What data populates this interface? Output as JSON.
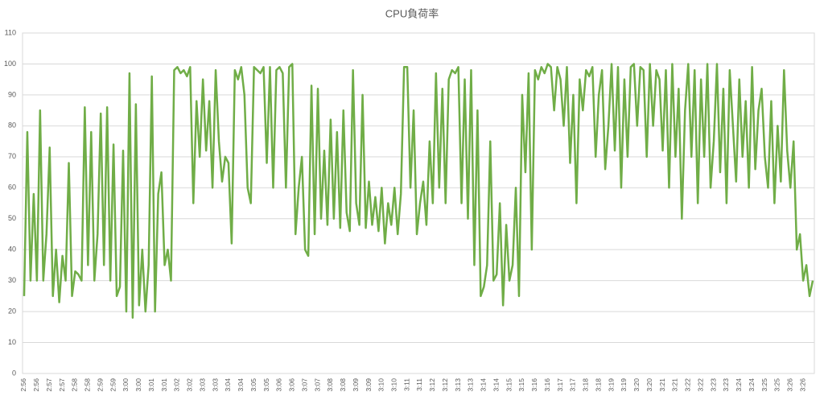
{
  "chart_data": {
    "type": "line",
    "title": "CPU負荷率",
    "categories": [
      "2:56",
      null,
      null,
      null,
      "2:56",
      null,
      null,
      null,
      "2:57",
      null,
      null,
      null,
      "2:57",
      null,
      null,
      null,
      "2:58",
      null,
      null,
      null,
      "2:58",
      null,
      null,
      null,
      "2:59",
      null,
      null,
      null,
      "2:59",
      null,
      null,
      null,
      "3:00",
      null,
      null,
      null,
      "3:00",
      null,
      null,
      null,
      "3:01",
      null,
      null,
      null,
      "3:01",
      null,
      null,
      null,
      "3:02",
      null,
      null,
      null,
      "3:02",
      null,
      null,
      null,
      "3:03",
      null,
      null,
      null,
      "3:03",
      null,
      null,
      null,
      "3:04",
      null,
      null,
      null,
      "3:04",
      null,
      null,
      null,
      "3:05",
      null,
      null,
      null,
      "3:05",
      null,
      null,
      null,
      "3:06",
      null,
      null,
      null,
      "3:06",
      null,
      null,
      null,
      "3:07",
      null,
      null,
      null,
      "3:07",
      null,
      null,
      null,
      "3:08",
      null,
      null,
      null,
      "3:08",
      null,
      null,
      null,
      "3:09",
      null,
      null,
      null,
      "3:09",
      null,
      null,
      null,
      "3:10",
      null,
      null,
      null,
      "3:10",
      null,
      null,
      null,
      "3:11",
      null,
      null,
      null,
      "3:11",
      null,
      null,
      null,
      "3:12",
      null,
      null,
      null,
      "3:12",
      null,
      null,
      null,
      "3:13",
      null,
      null,
      null,
      "3:13",
      null,
      null,
      null,
      "3:14",
      null,
      null,
      null,
      "3:14",
      null,
      null,
      null,
      "3:15",
      null,
      null,
      null,
      "3:15",
      null,
      null,
      null,
      "3:16",
      null,
      null,
      null,
      "3:16",
      null,
      null,
      null,
      "3:17",
      null,
      null,
      null,
      "3:17",
      null,
      null,
      null,
      "3:18",
      null,
      null,
      null,
      "3:18",
      null,
      null,
      null,
      "3:19",
      null,
      null,
      null,
      "3:19",
      null,
      null,
      null,
      "3:20",
      null,
      null,
      null,
      "3:20",
      null,
      null,
      null,
      "3:21",
      null,
      null,
      null,
      "3:21",
      null,
      null,
      null,
      "3:22",
      null,
      null,
      null,
      "3:22",
      null,
      null,
      null,
      "3:23",
      null,
      null,
      null,
      "3:23",
      null,
      null,
      null,
      "3:24",
      null,
      null,
      null,
      "3:24",
      null,
      null,
      null,
      "3:25",
      null,
      null,
      null,
      "3:25",
      null,
      null,
      null,
      "3:26",
      null,
      null,
      null,
      "3:26",
      null,
      null,
      null
    ],
    "values": [
      25,
      78,
      30,
      58,
      30,
      85,
      30,
      45,
      73,
      25,
      40,
      23,
      38,
      30,
      68,
      25,
      33,
      32,
      30,
      86,
      35,
      78,
      30,
      45,
      84,
      35,
      86,
      30,
      74,
      25,
      28,
      72,
      20,
      97,
      18,
      87,
      22,
      40,
      20,
      35,
      96,
      20,
      58,
      65,
      35,
      40,
      30,
      98,
      99,
      97,
      98,
      96,
      99,
      55,
      88,
      70,
      95,
      72,
      88,
      60,
      98,
      75,
      62,
      70,
      68,
      42,
      98,
      95,
      99,
      90,
      60,
      55,
      99,
      98,
      97,
      99,
      68,
      99,
      60,
      98,
      99,
      97,
      60,
      99,
      100,
      45,
      60,
      70,
      40,
      38,
      93,
      45,
      92,
      50,
      72,
      48,
      82,
      50,
      78,
      47,
      85,
      52,
      46,
      98,
      55,
      48,
      90,
      47,
      62,
      48,
      57,
      46,
      60,
      42,
      55,
      48,
      60,
      45,
      58,
      99,
      99,
      60,
      85,
      45,
      55,
      62,
      48,
      75,
      55,
      97,
      60,
      92,
      55,
      95,
      98,
      97,
      99,
      55,
      95,
      50,
      98,
      35,
      85,
      25,
      28,
      35,
      75,
      30,
      32,
      55,
      22,
      48,
      30,
      35,
      60,
      25,
      90,
      65,
      97,
      40,
      98,
      95,
      99,
      97,
      100,
      99,
      85,
      99,
      95,
      80,
      99,
      68,
      90,
      55,
      95,
      85,
      98,
      96,
      99,
      70,
      90,
      98,
      66,
      80,
      100,
      72,
      99,
      60,
      95,
      70,
      99,
      100,
      80,
      99,
      98,
      70,
      100,
      80,
      98,
      95,
      72,
      98,
      60,
      100,
      70,
      92,
      50,
      85,
      100,
      70,
      98,
      55,
      95,
      70,
      100,
      60,
      75,
      100,
      65,
      92,
      55,
      98,
      80,
      62,
      95,
      70,
      88,
      60,
      99,
      66,
      85,
      92,
      70,
      60,
      88,
      55,
      80,
      62,
      98,
      72,
      60,
      75,
      40,
      45,
      30,
      35,
      25,
      30
    ],
    "color": "#70ad47",
    "ylim": [
      0,
      110
    ],
    "yticks": [
      0,
      10,
      20,
      30,
      40,
      50,
      60,
      70,
      80,
      90,
      100,
      110
    ],
    "grid": true
  }
}
